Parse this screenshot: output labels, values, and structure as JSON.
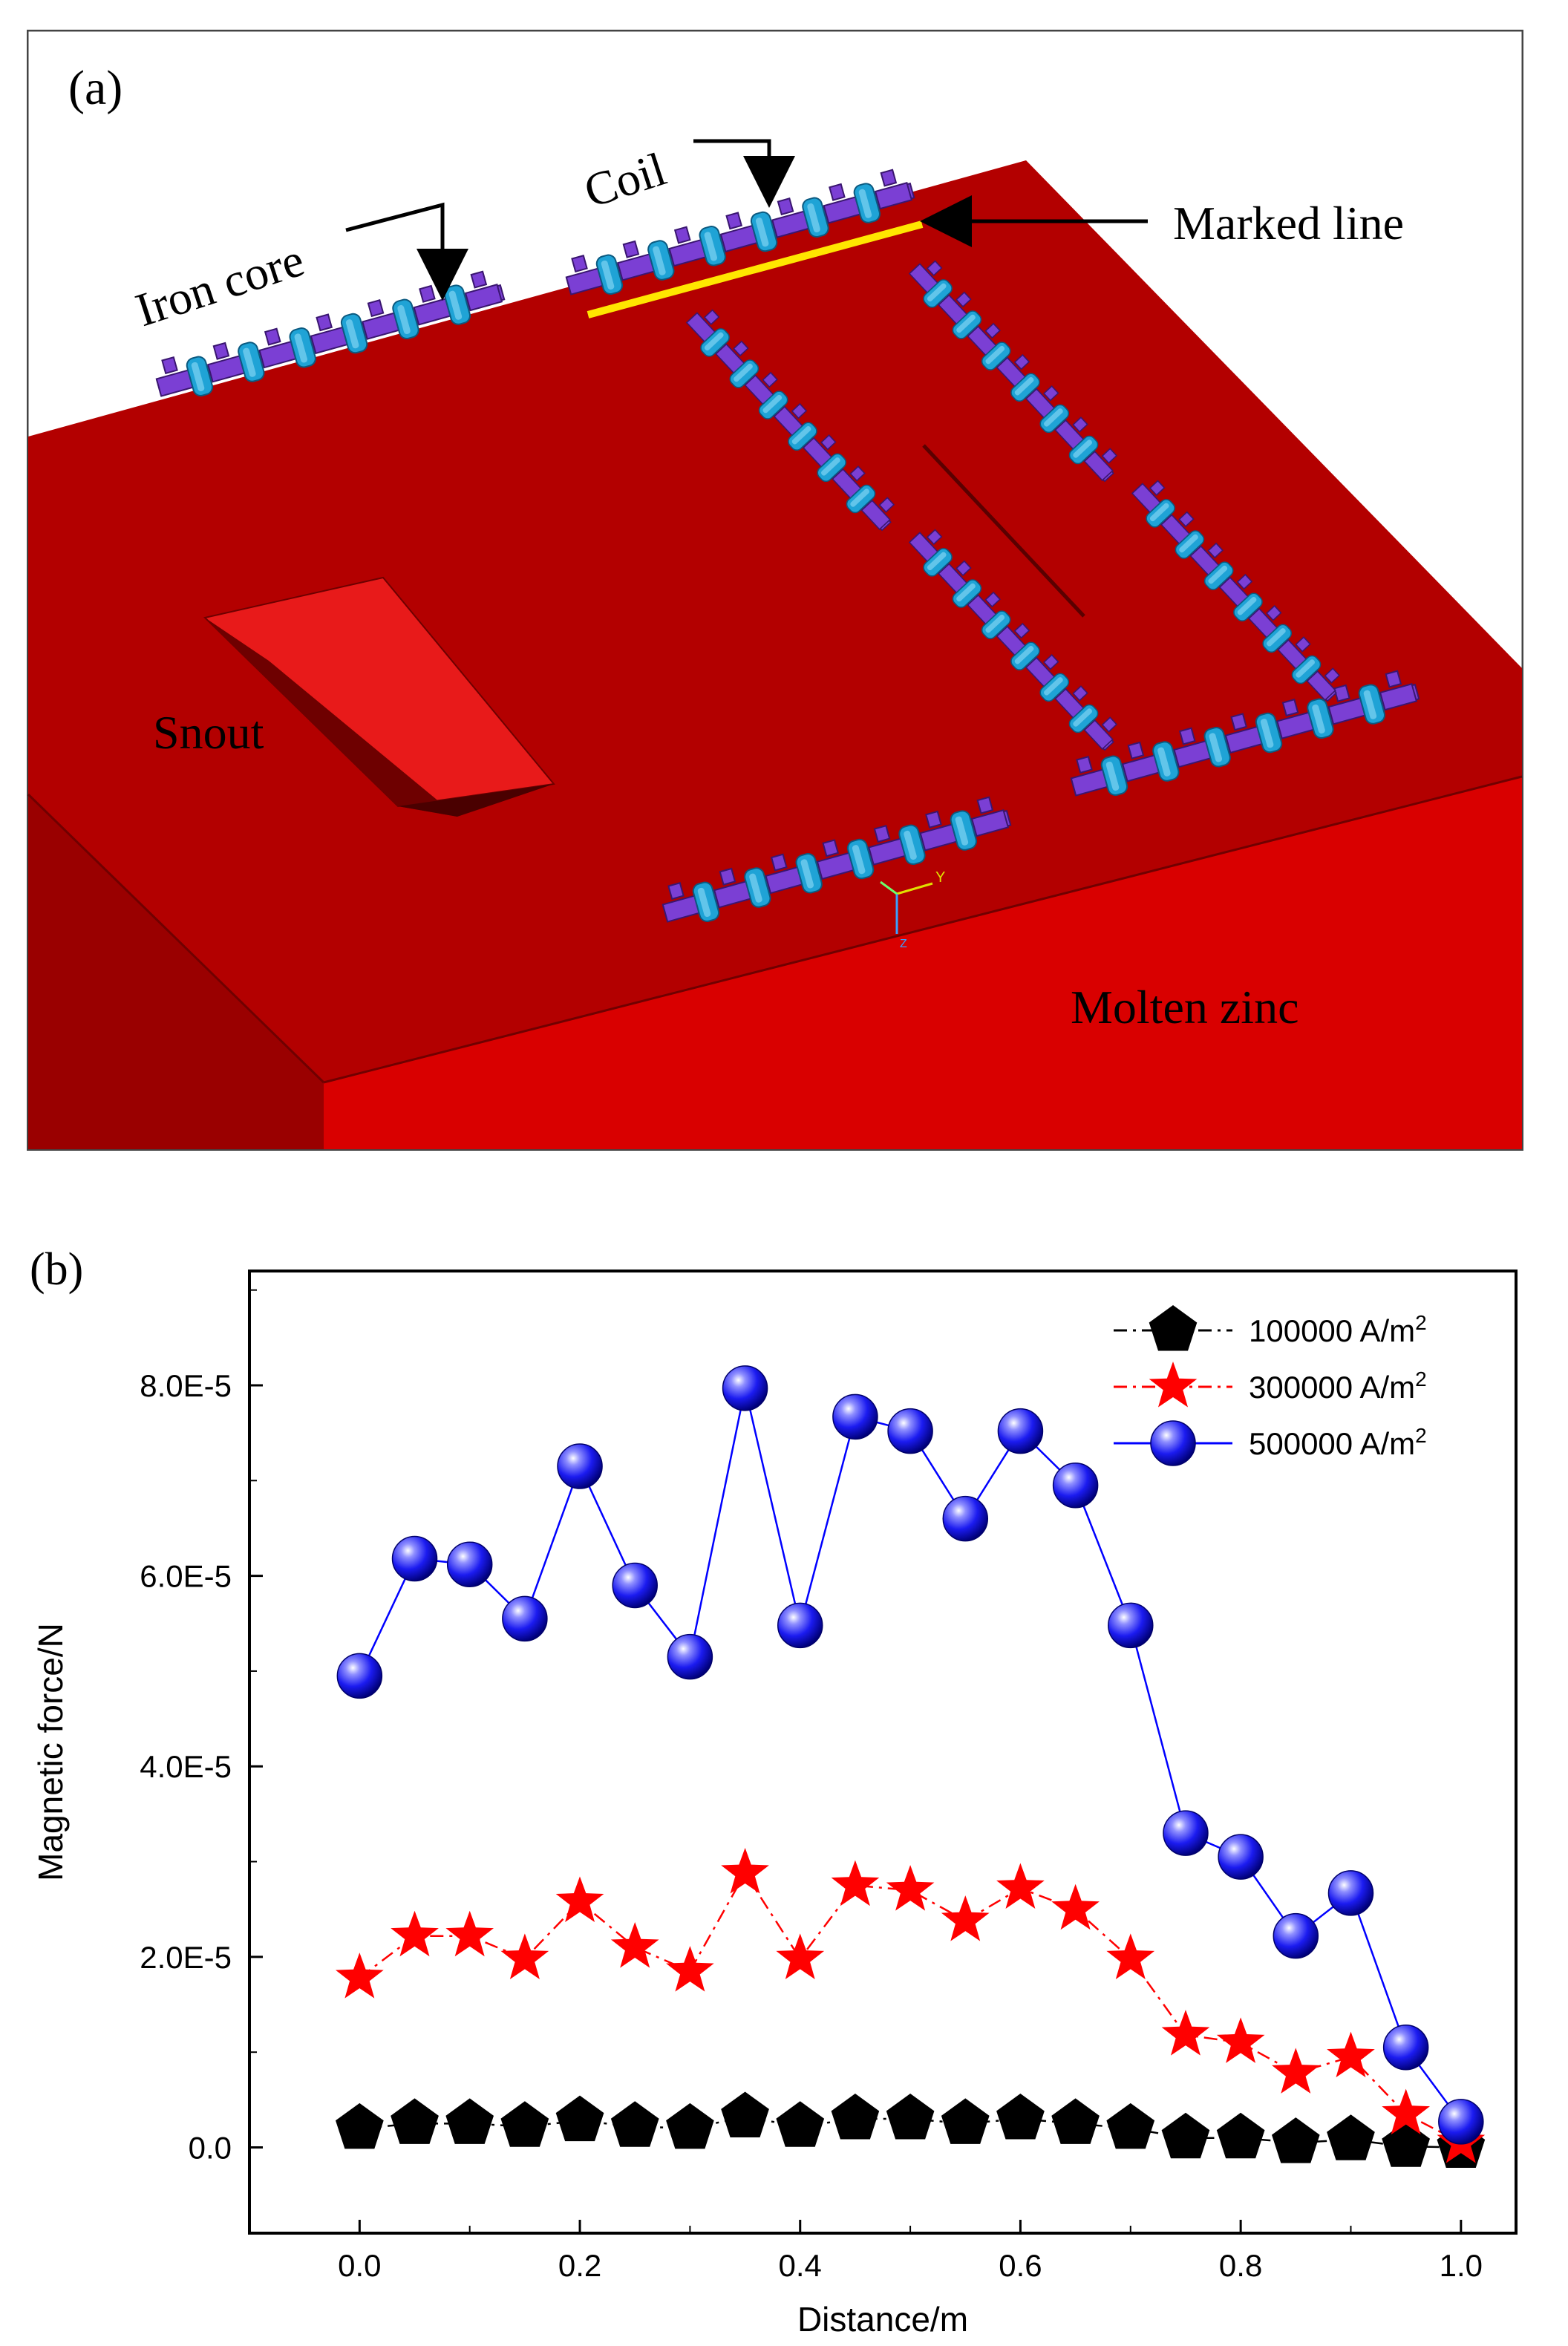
{
  "panel_a": {
    "label": "(a)",
    "annotations": {
      "coil": "Coil",
      "iron_core": "Iron core",
      "marked_line": "Marked line",
      "snout": "Snout",
      "molten_zinc": "Molten zinc",
      "axis_y": "Y",
      "axis_z": "Z"
    },
    "colors": {
      "zinc_top": "#b30000",
      "zinc_front": "#d90000",
      "zinc_side": "#9a0000",
      "snout_face": "#e81a1a",
      "snout_shadow": "#6e0000",
      "core": "#7b3fd4",
      "coil": "#1fa3d6",
      "marked_line": "#ffe600"
    }
  },
  "panel_b": {
    "label": "(b)"
  },
  "chart_data": {
    "type": "line",
    "title": "",
    "xlabel": "Distance/m",
    "ylabel": "Magnetic force/N",
    "xlim": [
      -0.1,
      1.05
    ],
    "ylim": [
      -9e-06,
      9.2e-05
    ],
    "x": [
      0.0,
      0.05,
      0.1,
      0.15,
      0.2,
      0.25,
      0.3,
      0.35,
      0.4,
      0.45,
      0.5,
      0.55,
      0.6,
      0.65,
      0.7,
      0.75,
      0.8,
      0.85,
      0.9,
      0.95,
      1.0
    ],
    "x_ticks": [
      0.0,
      0.2,
      0.4,
      0.6,
      0.8,
      1.0
    ],
    "x_tick_labels": [
      "0.0",
      "0.2",
      "0.4",
      "0.6",
      "0.8",
      "1.0"
    ],
    "y_ticks": [
      0,
      2e-05,
      4e-05,
      6e-05,
      8e-05
    ],
    "y_tick_labels": [
      "0.0",
      "2.0E-5",
      "4.0E-5",
      "6.0E-5",
      "8.0E-5"
    ],
    "legend_position": "top-right",
    "series": [
      {
        "name": "100000 A/m",
        "unit_sup": "2",
        "color": "#000000",
        "marker": "pentagon",
        "line": "dash-dot",
        "values": [
          2e-06,
          2.5e-06,
          2.5e-06,
          2.2e-06,
          2.8e-06,
          2.2e-06,
          2e-06,
          3.2e-06,
          2.2e-06,
          3e-06,
          3e-06,
          2.5e-06,
          3e-06,
          2.5e-06,
          2e-06,
          1e-06,
          1e-06,
          5e-07,
          8e-07,
          1e-07,
          0.0
        ]
      },
      {
        "name": "300000 A/m",
        "unit_sup": "2",
        "color": "#ff0000",
        "marker": "star",
        "line": "dash-dot",
        "values": [
          1.78e-05,
          2.22e-05,
          2.22e-05,
          1.98e-05,
          2.58e-05,
          2.1e-05,
          1.85e-05,
          2.88e-05,
          1.98e-05,
          2.75e-05,
          2.7e-05,
          2.38e-05,
          2.72e-05,
          2.5e-05,
          1.98e-05,
          1.18e-05,
          1.1e-05,
          7.8e-06,
          9.5e-06,
          3.5e-06,
          5e-07
        ]
      },
      {
        "name": "500000 A/m",
        "unit_sup": "2",
        "color": "#0000ff",
        "marker": "sphere",
        "line": "solid",
        "values": [
          4.95e-05,
          6.18e-05,
          6.12e-05,
          5.55e-05,
          7.15e-05,
          5.9e-05,
          5.15e-05,
          7.97e-05,
          5.48e-05,
          7.67e-05,
          7.52e-05,
          6.6e-05,
          7.52e-05,
          6.95e-05,
          5.48e-05,
          3.3e-05,
          3.05e-05,
          2.22e-05,
          2.67e-05,
          1.05e-05,
          2.7e-06
        ]
      }
    ]
  }
}
